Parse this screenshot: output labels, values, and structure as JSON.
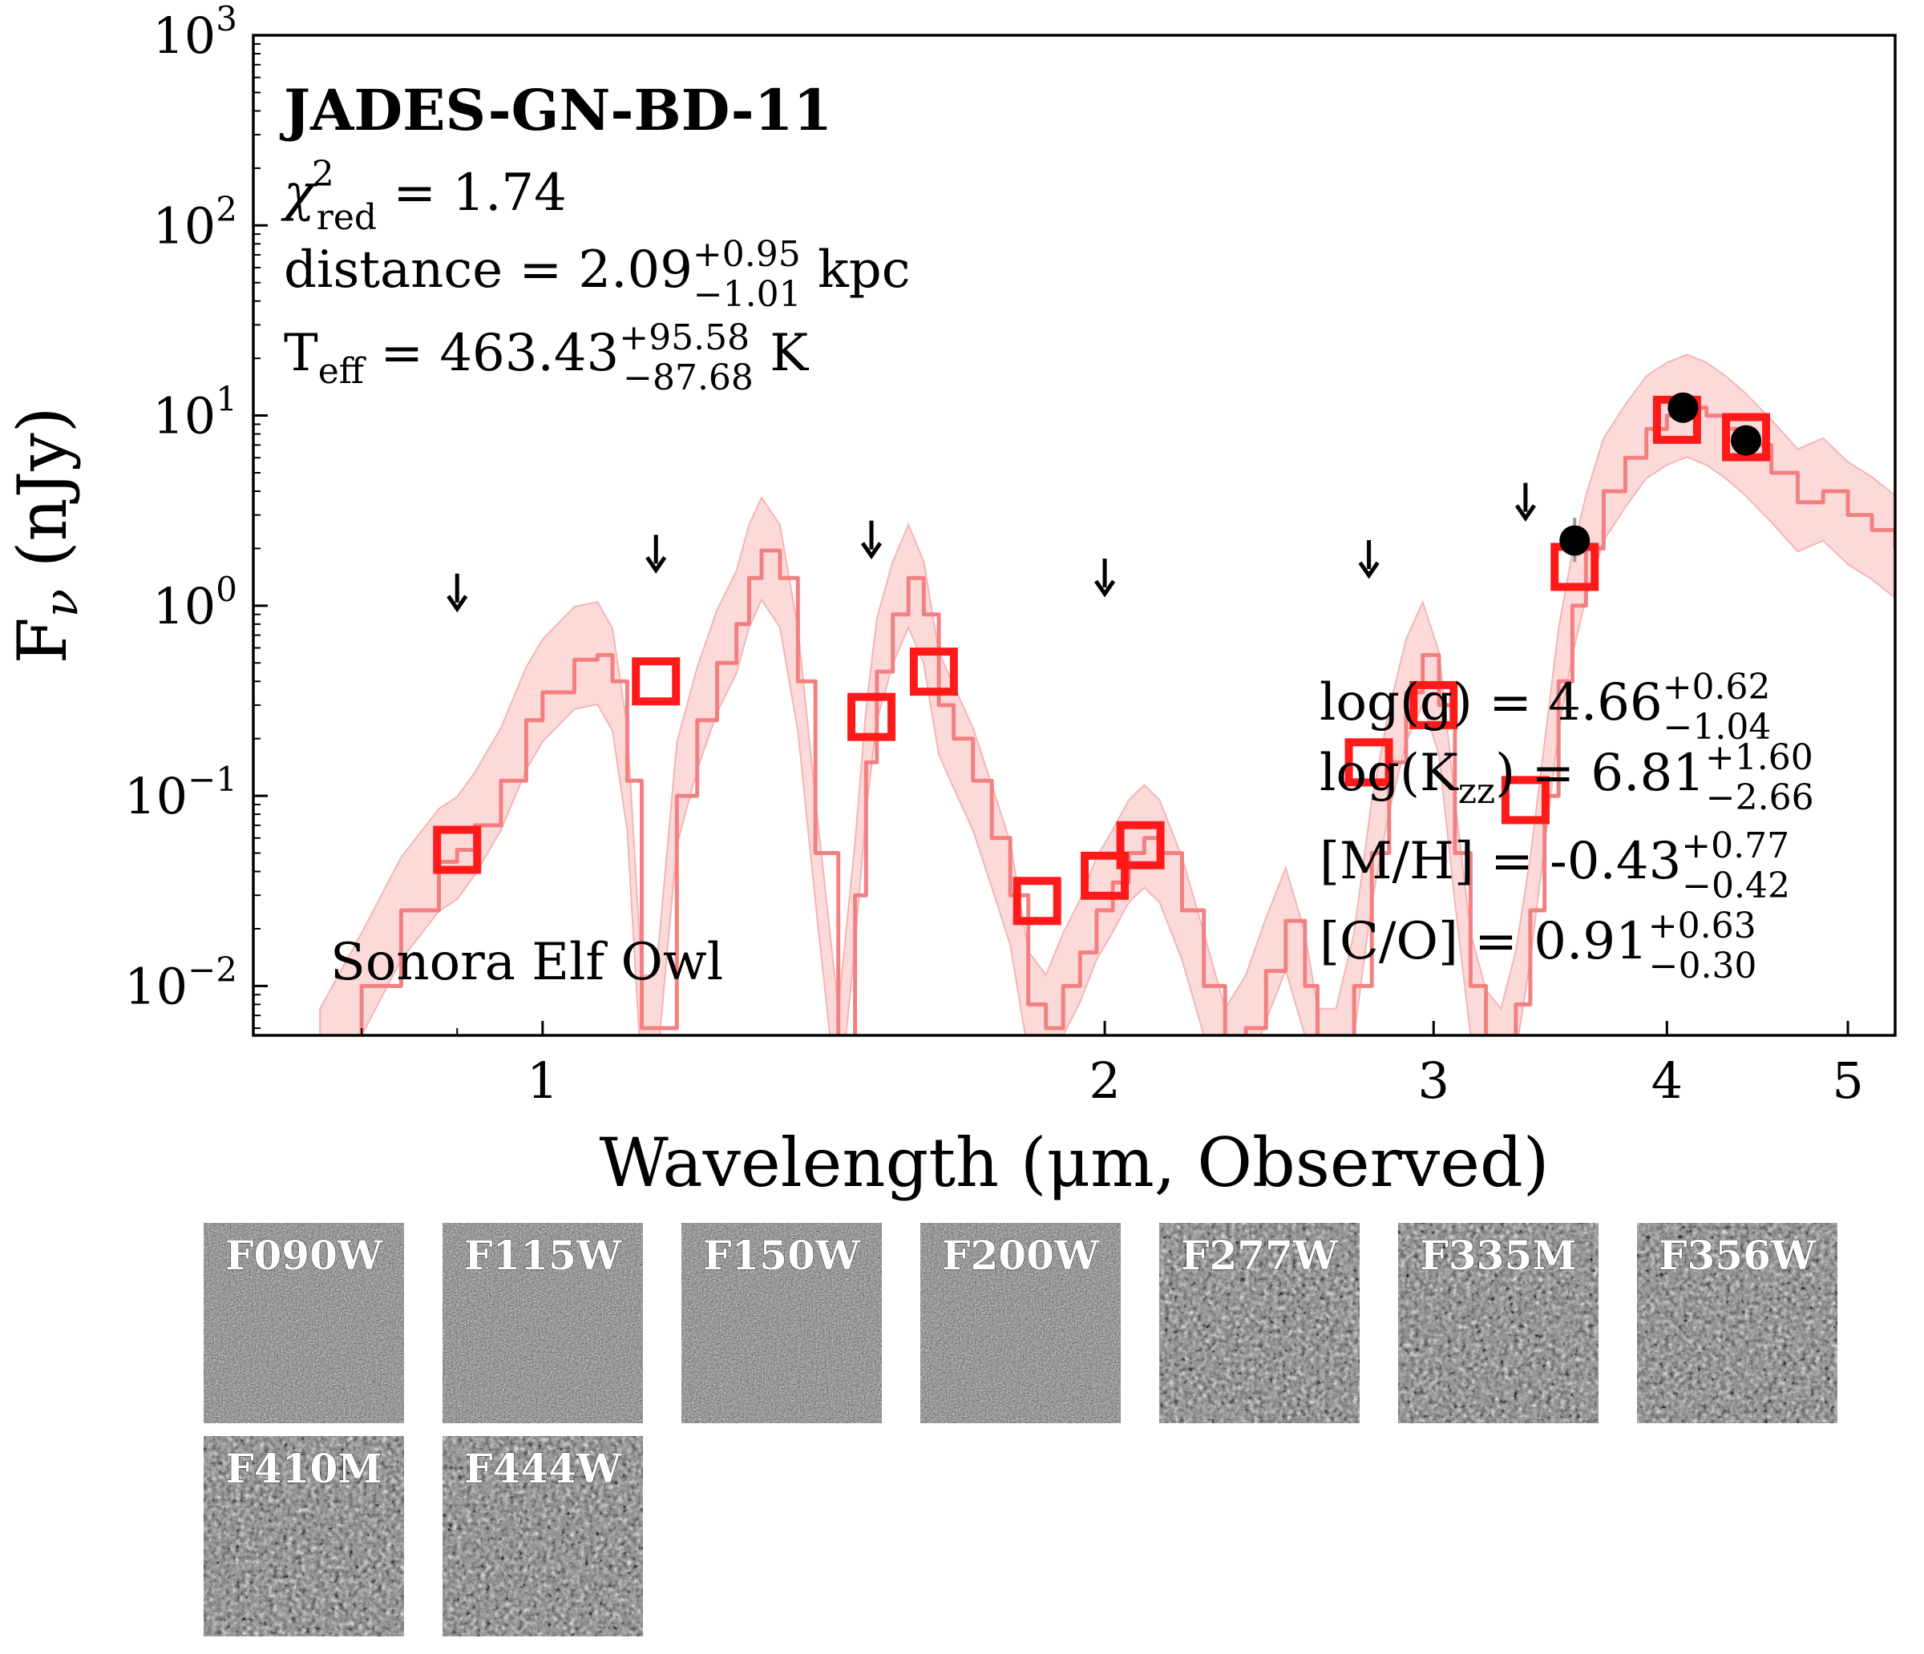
{
  "chart_data": {
    "type": "scatter",
    "object_name": "JADES-GN-BD-11",
    "xlabel": "Wavelength (μm, Observed)",
    "ylabel": "Fν (nJy)",
    "xscale": "log",
    "yscale": "log",
    "xlim": [
      0.7,
      5.3
    ],
    "ylim": [
      0.0055,
      1000
    ],
    "xticks": [
      1,
      2,
      3,
      4,
      5
    ],
    "xticks_labels": [
      "1",
      "2",
      "3",
      "4",
      "5"
    ],
    "yticks": [
      0.01,
      0.1,
      1,
      10,
      100,
      1000
    ],
    "yticks_labels": [
      {
        "base": "10",
        "exp": "−2"
      },
      {
        "base": "10",
        "exp": "−1"
      },
      {
        "base": "10",
        "exp": "0"
      },
      {
        "base": "10",
        "exp": "1"
      },
      {
        "base": "10",
        "exp": "2"
      },
      {
        "base": "10",
        "exp": "3"
      }
    ],
    "annotations": {
      "chi2": {
        "symbol": "χ",
        "sup": "2",
        "sub": "red",
        "text": " = 1.74"
      },
      "distance": {
        "label": "distance = 2.09",
        "sup": "+0.95",
        "sub": "−1.01",
        "unit": " kpc"
      },
      "teff": {
        "label": "T",
        "label_sub": "eff",
        "value": " = 463.43",
        "sup": "+95.58",
        "sub": "−87.68",
        "unit": " K"
      },
      "logg": {
        "label": "log(g) = 4.66",
        "sup": "+0.62",
        "sub": "−1.04"
      },
      "logkzz": {
        "label": "log(K",
        "label_sub": "zz",
        "label_end": ") = 6.81",
        "sup": "+1.60",
        "sub": "−2.66"
      },
      "mh": {
        "label": "[M/H] = -0.43",
        "sup": "+0.77",
        "sub": "−0.42"
      },
      "co": {
        "label": "[C/O] = 0.91",
        "sup": "+0.63",
        "sub": "−0.30"
      }
    },
    "model_label": "Sonora Elf Owl",
    "upper_limits": [
      {
        "x": 0.9,
        "y": 1.0
      },
      {
        "x": 1.15,
        "y": 1.6
      },
      {
        "x": 1.5,
        "y": 1.9
      },
      {
        "x": 2.0,
        "y": 1.2
      },
      {
        "x": 2.77,
        "y": 1.5
      },
      {
        "x": 3.36,
        "y": 3.0
      }
    ],
    "detections": [
      {
        "x": 3.57,
        "y": 2.2,
        "err_lo": 1.7,
        "err_hi": 2.9
      },
      {
        "x": 4.08,
        "y": 11.0
      },
      {
        "x": 4.41,
        "y": 7.4
      }
    ],
    "model_photometry": [
      {
        "x": 0.9,
        "y": 0.052
      },
      {
        "x": 1.15,
        "y": 0.4
      },
      {
        "x": 1.5,
        "y": 0.26
      },
      {
        "x": 1.62,
        "y": 0.45
      },
      {
        "x": 1.84,
        "y": 0.028
      },
      {
        "x": 2.0,
        "y": 0.038
      },
      {
        "x": 2.09,
        "y": 0.055
      },
      {
        "x": 2.77,
        "y": 0.15
      },
      {
        "x": 3.0,
        "y": 0.3
      },
      {
        "x": 3.36,
        "y": 0.095
      },
      {
        "x": 3.57,
        "y": 1.6
      },
      {
        "x": 4.05,
        "y": 9.5
      },
      {
        "x": 4.41,
        "y": 7.7
      }
    ],
    "model_spectrum": {
      "x": [
        0.76,
        0.8,
        0.84,
        0.88,
        0.9,
        0.92,
        0.95,
        0.98,
        1.0,
        1.04,
        1.07,
        1.09,
        1.11,
        1.13,
        1.15,
        1.18,
        1.21,
        1.24,
        1.27,
        1.29,
        1.31,
        1.34,
        1.37,
        1.4,
        1.44,
        1.47,
        1.49,
        1.51,
        1.54,
        1.57,
        1.6,
        1.63,
        1.66,
        1.7,
        1.74,
        1.78,
        1.82,
        1.86,
        1.9,
        1.94,
        1.98,
        2.02,
        2.06,
        2.1,
        2.14,
        2.2,
        2.26,
        2.32,
        2.38,
        2.44,
        2.5,
        2.56,
        2.6,
        2.66,
        2.72,
        2.78,
        2.84,
        2.9,
        2.96,
        3.02,
        3.08,
        3.14,
        3.2,
        3.26,
        3.32,
        3.38,
        3.44,
        3.5,
        3.56,
        3.62,
        3.7,
        3.8,
        3.9,
        4.0,
        4.1,
        4.2,
        4.3,
        4.4,
        4.55,
        4.7,
        4.85,
        5.0,
        5.15,
        5.3
      ],
      "y": [
        0.004,
        0.01,
        0.025,
        0.045,
        0.052,
        0.07,
        0.12,
        0.25,
        0.35,
        0.52,
        0.55,
        0.4,
        0.12,
        0.006,
        0.006,
        0.1,
        0.25,
        0.5,
        0.8,
        1.4,
        1.95,
        1.4,
        0.4,
        0.05,
        0.004,
        0.03,
        0.15,
        0.45,
        0.9,
        1.4,
        0.9,
        0.3,
        0.2,
        0.12,
        0.06,
        0.03,
        0.008,
        0.006,
        0.01,
        0.015,
        0.025,
        0.035,
        0.05,
        0.06,
        0.05,
        0.025,
        0.01,
        0.004,
        0.006,
        0.012,
        0.022,
        0.01,
        0.004,
        0.004,
        0.01,
        0.05,
        0.15,
        0.35,
        0.55,
        0.3,
        0.05,
        0.01,
        0.005,
        0.004,
        0.008,
        0.025,
        0.1,
        0.4,
        1.0,
        2.0,
        4.0,
        6.0,
        8.5,
        10.0,
        11.0,
        10.0,
        8.5,
        7.0,
        5.0,
        3.5,
        4.0,
        3.0,
        2.5,
        2.0
      ],
      "band_scale_low": 0.55,
      "band_scale_high": 1.9
    }
  },
  "thumbnails": [
    {
      "label": "F090W"
    },
    {
      "label": "F115W"
    },
    {
      "label": "F150W"
    },
    {
      "label": "F200W"
    },
    {
      "label": "F277W"
    },
    {
      "label": "F335M"
    },
    {
      "label": "F356W"
    },
    {
      "label": "F410M"
    },
    {
      "label": "F444W"
    }
  ],
  "colors": {
    "model_line": "#f28080",
    "model_band": "#fcdada",
    "model_phot": "#ff1a1a",
    "detection": "#000000"
  }
}
